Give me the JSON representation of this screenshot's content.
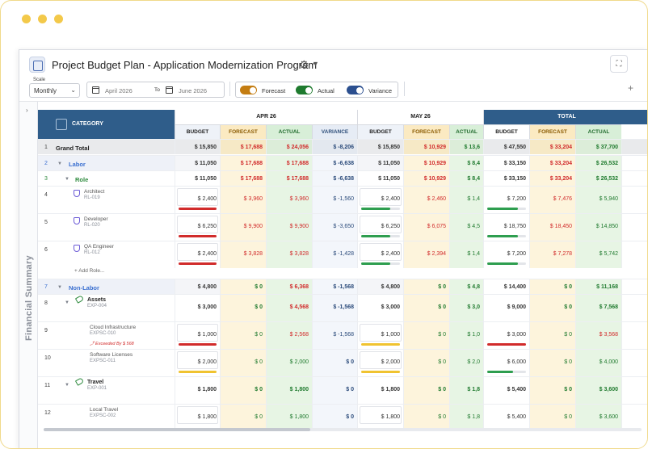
{
  "window": {
    "title": "Project Budget Plan - Application Modernization Program",
    "expand_icon": "expand-icon",
    "settings_icon": "gear-icon"
  },
  "toolbar": {
    "scale_label": "Scale",
    "scale_value": "Monthly",
    "date_from": "April 2026",
    "to_label": "To",
    "date_to": "June 2026",
    "forecast_label": "Forecast",
    "actual_label": "Actual",
    "variance_label": "Variance",
    "toggle_colors": {
      "forecast": "#c47d12",
      "actual": "#1e7a2e",
      "variance": "#2b4f8f"
    },
    "add_label": "+"
  },
  "rail": {
    "label": "Financial Summary"
  },
  "grid": {
    "category_header": "CATEGORY",
    "months": [
      "APR 26",
      "MAY 26",
      "TOTAL"
    ],
    "subheaders": [
      "BUDGET",
      "FORECAST",
      "ACTUAL",
      "VARIANCE"
    ],
    "add_role_label": "+ Add Role...",
    "rows": [
      {
        "n": "1",
        "label": "Grand Total",
        "type": "grand",
        "apr": [
          "$ 15,850",
          "$ 17,688",
          "$ 24,056",
          "$ -8,206"
        ],
        "may": [
          "$ 15,850",
          "$ 10,929",
          "$ 13,6"
        ],
        "tot": [
          "$ 47,550",
          "$ 33,204",
          "$ 37,700"
        ]
      },
      {
        "n": "2",
        "label": "Labor",
        "type": "section",
        "apr": [
          "$ 11,050",
          "$ 17,688",
          "$ 17,688",
          "$ -6,638"
        ],
        "may": [
          "$ 11,050",
          "$ 10,929",
          "$ 8,4"
        ],
        "tot": [
          "$ 33,150",
          "$ 33,204",
          "$ 26,532"
        ]
      },
      {
        "n": "3",
        "label": "Role",
        "type": "group",
        "apr": [
          "$ 11,050",
          "$ 17,688",
          "$ 17,688",
          "$ -6,638"
        ],
        "may": [
          "$ 11,050",
          "$ 10,929",
          "$ 8,4"
        ],
        "tot": [
          "$ 33,150",
          "$ 33,204",
          "$ 26,532"
        ]
      },
      {
        "n": "4",
        "label": "Architect",
        "code": "RL-019",
        "type": "role",
        "apr": [
          "$ 2,400",
          "$ 3,960",
          "$ 3,960",
          "$ -1,560"
        ],
        "may": [
          "$ 2,400",
          "$ 2,460",
          "$ 1,4"
        ],
        "tot": [
          "$ 7,200",
          "$ 7,476",
          "$ 5,940"
        ],
        "bars": {
          "apr": "#d12b2b",
          "may": "#2e9e4f",
          "tot": "#2e9e4f"
        },
        "bar_fill": {
          "may": 0.75,
          "tot": 0.8
        }
      },
      {
        "n": "5",
        "label": "Developer",
        "code": "RL-020",
        "type": "role",
        "apr": [
          "$ 6,250",
          "$ 9,900",
          "$ 9,900",
          "$ -3,650"
        ],
        "may": [
          "$ 6,250",
          "$ 6,075",
          "$ 4,5"
        ],
        "tot": [
          "$ 18,750",
          "$ 18,450",
          "$ 14,850"
        ],
        "bars": {
          "apr": "#d12b2b",
          "may": "#2e9e4f",
          "tot": "#2e9e4f"
        },
        "bar_fill": {
          "may": 0.75,
          "tot": 0.8
        }
      },
      {
        "n": "6",
        "label": "QA Engineer",
        "code": "RL-012",
        "type": "role",
        "apr": [
          "$ 2,400",
          "$ 3,828",
          "$ 3,828",
          "$ -1,428"
        ],
        "may": [
          "$ 2,400",
          "$ 2,394",
          "$ 1,4"
        ],
        "tot": [
          "$ 7,200",
          "$ 7,278",
          "$ 5,742"
        ],
        "bars": {
          "apr": "#d12b2b",
          "may": "#2e9e4f",
          "tot": "#2e9e4f"
        },
        "bar_fill": {
          "may": 0.75,
          "tot": 0.8
        }
      },
      {
        "n": "7",
        "label": "Non-Labor",
        "type": "section",
        "apr": [
          "$ 4,800",
          "$ 0",
          "$ 6,368",
          "$ -1,568"
        ],
        "may": [
          "$ 4,800",
          "$ 0",
          "$ 4,8"
        ],
        "tot": [
          "$ 14,400",
          "$ 0",
          "$ 11,168"
        ]
      },
      {
        "n": "8",
        "label": "Assets",
        "code": "EXP-004",
        "type": "asset",
        "apr": [
          "$ 3,000",
          "$ 0",
          "$ 4,568",
          "$ -1,568"
        ],
        "may": [
          "$ 3,000",
          "$ 0",
          "$ 3,0"
        ],
        "tot": [
          "$ 9,000",
          "$ 0",
          "$ 7,568"
        ]
      },
      {
        "n": "9",
        "label": "Cloud Infrastructure",
        "code": "EXPSC-010",
        "warning": "Exceeded By $ 568",
        "type": "item",
        "apr": [
          "$ 1,000",
          "$ 0",
          "$ 2,568",
          "$ -1,568"
        ],
        "may": [
          "$ 1,000",
          "$ 0",
          "$ 1,0"
        ],
        "tot": [
          "$ 3,000",
          "$ 0",
          "$ 3,568"
        ],
        "bars": {
          "apr": "#d12b2b",
          "may": "#f0c330",
          "tot": "#d12b2b"
        },
        "bar_fill": {
          "may": 1.0,
          "tot": 1.0
        }
      },
      {
        "n": "10",
        "label": "Software Licenses",
        "code": "EXPSC-011",
        "type": "item",
        "apr": [
          "$ 2,000",
          "$ 0",
          "$ 2,000",
          "$ 0"
        ],
        "may": [
          "$ 2,000",
          "$ 0",
          "$ 2,0"
        ],
        "tot": [
          "$ 6,000",
          "$ 0",
          "$ 4,000"
        ],
        "bars": {
          "apr": "#f0c330",
          "may": "#f0c330",
          "tot": "#2e9e4f"
        },
        "bar_fill": {
          "may": 1.0,
          "tot": 0.67
        }
      },
      {
        "n": "11",
        "label": "Travel",
        "code": "EXP-001",
        "type": "asset",
        "apr": [
          "$ 1,800",
          "$ 0",
          "$ 1,800",
          "$ 0"
        ],
        "may": [
          "$ 1,800",
          "$ 0",
          "$ 1,8"
        ],
        "tot": [
          "$ 5,400",
          "$ 0",
          "$ 3,600"
        ]
      },
      {
        "n": "12",
        "label": "Local Travel",
        "code": "EXPSC-002",
        "type": "item",
        "apr": [
          "$ 1,800",
          "$ 0",
          "$ 1,800",
          "$ 0"
        ],
        "may": [
          "$ 1,800",
          "$ 0",
          "$ 1,8"
        ],
        "tot": [
          "$ 5,400",
          "$ 0",
          "$ 3,600"
        ]
      }
    ]
  }
}
